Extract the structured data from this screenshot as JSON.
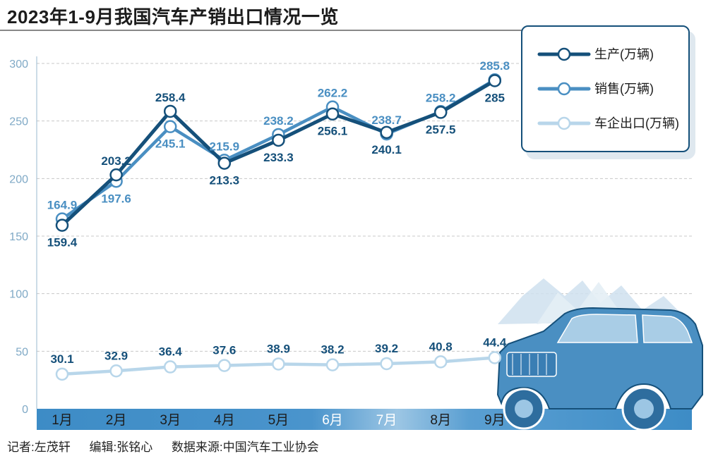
{
  "title": "2023年1-9月我国汽车产销出口情况一览",
  "credits": {
    "reporter": "记者:左茂轩",
    "editor": "编辑:张铭心",
    "source": "数据来源:中国汽车工业协会"
  },
  "colors": {
    "production": "#15507a",
    "sales": "#4a8fc2",
    "export": "#b8d6ea",
    "axis_text": "#7fa9c6",
    "band": "#3d8cc6"
  },
  "chart_data": {
    "type": "line",
    "title": "2023年1-9月我国汽车产销出口情况一览",
    "categories": [
      "1月",
      "2月",
      "3月",
      "4月",
      "5月",
      "6月",
      "7月",
      "8月",
      "9月"
    ],
    "series": [
      {
        "name": "生产(万辆)",
        "values": [
          159.4,
          203.2,
          258.4,
          213.3,
          233.3,
          256.1,
          240.1,
          257.5,
          285
        ]
      },
      {
        "name": "销售(万辆)",
        "values": [
          164.9,
          197.6,
          245.1,
          215.9,
          238.2,
          262.2,
          238.7,
          258.2,
          285.8
        ]
      },
      {
        "name": "车企出口(万辆)",
        "values": [
          30.1,
          32.9,
          36.4,
          37.6,
          38.9,
          38.2,
          39.2,
          40.8,
          44.4
        ]
      }
    ],
    "labels": {
      "production": [
        "159.4",
        "203.2",
        "258.4",
        "213.3",
        "233.3",
        "256.1",
        "240.1",
        "257.5",
        "285"
      ],
      "sales": [
        "164.9",
        "197.6",
        "245.1",
        "215.9",
        "238.2",
        "262.2",
        "238.7",
        "258.2",
        "285.8"
      ],
      "export": [
        "30.1",
        "32.9",
        "36.4",
        "37.6",
        "38.9",
        "38.2",
        "39.2",
        "40.8",
        "44.4"
      ]
    },
    "yticks": [
      "0",
      "50",
      "100",
      "150",
      "200",
      "250",
      "300"
    ],
    "ylim": [
      0,
      300
    ],
    "grid": true,
    "legend": "top-right"
  }
}
